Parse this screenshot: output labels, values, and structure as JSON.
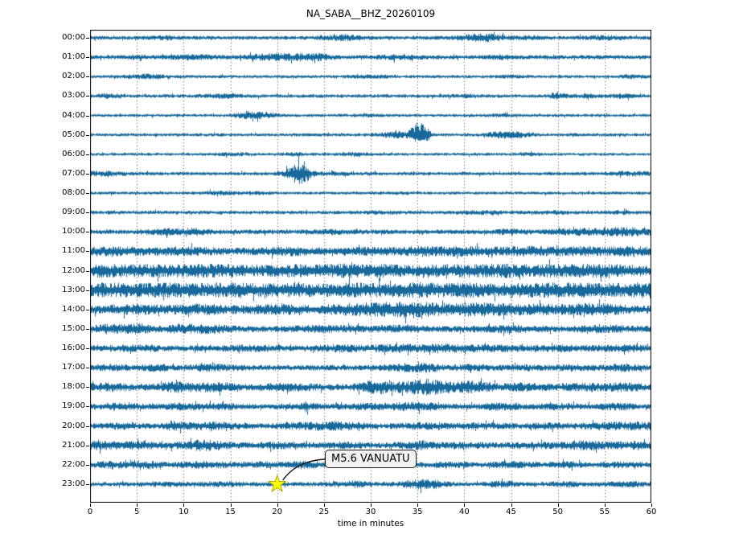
{
  "title": "NA_SABA__BHZ_20260109",
  "xlabel": "time in minutes",
  "annotation": {
    "label": "M5.6 VANUATU",
    "minute": 20,
    "row_label": "23:00"
  },
  "colors": {
    "trace": "#17699c",
    "grid": "#4d4d4d",
    "spine": "#000000",
    "star_fill": "#ffff00",
    "star_edge": "#a8a800",
    "arrow": "#111111",
    "annotation_bg": "#f2f2f2",
    "annotation_border": "#1a1a1a"
  },
  "chart_data": {
    "type": "line",
    "subtype": "helicorder-dayplot",
    "title": "NA_SABA__BHZ_20260109",
    "xlabel": "time in minutes",
    "x_range": [
      0,
      60
    ],
    "x_ticks": [
      0,
      5,
      10,
      15,
      20,
      25,
      30,
      35,
      40,
      45,
      50,
      55,
      60
    ],
    "grid": "vertical dotted lines every 5 minutes",
    "legend": "none",
    "annotation": {
      "label": "M5.6 VANUATU",
      "minute": 20,
      "row_label": "23:00",
      "marker": "yellow-star"
    },
    "rows": [
      {
        "label": "00:00",
        "base": 2.4,
        "bursts": [
          [
            8,
            1,
            1.2
          ],
          [
            27,
            1.5,
            2.2
          ],
          [
            42,
            1.8,
            3.2
          ],
          [
            47,
            1,
            1.2
          ],
          [
            55,
            1.5,
            1.5
          ]
        ]
      },
      {
        "label": "01:00",
        "base": 2.6,
        "bursts": [
          [
            5,
            1,
            1.0
          ],
          [
            11,
            1.5,
            1.8
          ],
          [
            20,
            2.5,
            2.4
          ],
          [
            24,
            1.5,
            2.0
          ],
          [
            33,
            1.5,
            1.6
          ],
          [
            44,
            1,
            1.0
          ]
        ]
      },
      {
        "label": "02:00",
        "base": 2.0,
        "bursts": [
          [
            6,
            1.5,
            1.8
          ],
          [
            30,
            1.5,
            1.0
          ],
          [
            45,
            1,
            0.8
          ],
          [
            58,
            1,
            1.0
          ]
        ]
      },
      {
        "label": "03:00",
        "base": 2.2,
        "bursts": [
          [
            2,
            1,
            1.4
          ],
          [
            14,
            1.5,
            1.4
          ],
          [
            40,
            1,
            1.0
          ],
          [
            50,
            0.7,
            2.2
          ],
          [
            53,
            1,
            1.2
          ],
          [
            57,
            1,
            1.4
          ]
        ]
      },
      {
        "label": "04:00",
        "base": 1.9,
        "bursts": [
          [
            17,
            1.2,
            2.8
          ],
          [
            19,
            0.8,
            2.0
          ],
          [
            30,
            1,
            0.8
          ],
          [
            44,
            1,
            0.8
          ]
        ]
      },
      {
        "label": "05:00",
        "base": 2.0,
        "bursts": [
          [
            33,
            1.5,
            2.6
          ],
          [
            35,
            0.5,
            11.5
          ],
          [
            35.8,
            0.4,
            7.0
          ],
          [
            44,
            1.2,
            2.4
          ],
          [
            46,
            1,
            1.8
          ]
        ]
      },
      {
        "label": "06:00",
        "base": 1.9,
        "bursts": [
          [
            15,
            1.5,
            0.9
          ],
          [
            22,
            1,
            0.9
          ],
          [
            28,
            1,
            1.1
          ],
          [
            47,
            1,
            0.7
          ]
        ]
      },
      {
        "label": "07:00",
        "base": 2.2,
        "bursts": [
          [
            1,
            2,
            1.6
          ],
          [
            22,
            0.8,
            9.0
          ],
          [
            23,
            0.6,
            4.5
          ],
          [
            26,
            1.5,
            1.0
          ],
          [
            58,
            1.5,
            1.4
          ]
        ]
      },
      {
        "label": "08:00",
        "base": 1.9,
        "bursts": [
          [
            14,
            1.2,
            1.4
          ],
          [
            18,
            1,
            1.0
          ],
          [
            33,
            1,
            0.6
          ]
        ]
      },
      {
        "label": "09:00",
        "base": 2.3,
        "bursts": [
          [
            31,
            1,
            0.9
          ],
          [
            42,
            1.5,
            0.9
          ],
          [
            50,
            1,
            0.7
          ],
          [
            57,
            1,
            0.9
          ]
        ]
      },
      {
        "label": "10:00",
        "base": 2.9,
        "bursts": [
          [
            8,
            1.5,
            1.8
          ],
          [
            11,
            1.2,
            2.2
          ],
          [
            26,
            1.5,
            1.0
          ],
          [
            45,
            1.2,
            1.6
          ],
          [
            52,
            2,
            1.8
          ],
          [
            57,
            2.5,
            3.2
          ]
        ]
      },
      {
        "label": "11:00",
        "base": 4.6,
        "bursts": [
          [
            3,
            2,
            1.8
          ],
          [
            10,
            2,
            1.8
          ],
          [
            21,
            2,
            1.8
          ],
          [
            30,
            1.5,
            1.6
          ],
          [
            35,
            1.5,
            2.8
          ],
          [
            40,
            2,
            2.2
          ],
          [
            47,
            2.5,
            2.2
          ],
          [
            53,
            2,
            1.8
          ],
          [
            58,
            1.5,
            2.2
          ]
        ]
      },
      {
        "label": "12:00",
        "base": 6.2,
        "bursts": [
          [
            1,
            2,
            2.6
          ],
          [
            7,
            2.5,
            2.2
          ],
          [
            13,
            2.5,
            2.6
          ],
          [
            22,
            2.5,
            2.2
          ],
          [
            27,
            1.5,
            2.2
          ],
          [
            31,
            2,
            2.6
          ],
          [
            38,
            2,
            2.2
          ],
          [
            44,
            2.5,
            2.6
          ],
          [
            50,
            2,
            2.2
          ],
          [
            55,
            2.5,
            2.6
          ]
        ]
      },
      {
        "label": "13:00",
        "base": 6.8,
        "bursts": [
          [
            2,
            2,
            2.6
          ],
          [
            8,
            2.5,
            2.6
          ],
          [
            15,
            2.5,
            3.0
          ],
          [
            21,
            2,
            2.2
          ],
          [
            28,
            2.5,
            2.6
          ],
          [
            35,
            2.5,
            3.0
          ],
          [
            41,
            2,
            2.6
          ],
          [
            48,
            2.5,
            3.0
          ],
          [
            54,
            2.5,
            2.6
          ],
          [
            59,
            1.5,
            2.6
          ]
        ]
      },
      {
        "label": "14:00",
        "base": 5.2,
        "bursts": [
          [
            5,
            2,
            1.8
          ],
          [
            12,
            2,
            2.2
          ],
          [
            20,
            2,
            1.8
          ],
          [
            30,
            3.5,
            3.6
          ],
          [
            35,
            2.5,
            3.6
          ],
          [
            42,
            2.5,
            3.6
          ],
          [
            48,
            2,
            2.2
          ],
          [
            54,
            2,
            3.2
          ]
        ]
      },
      {
        "label": "15:00",
        "base": 4.0,
        "bursts": [
          [
            2,
            1.2,
            2.6
          ],
          [
            5,
            0.9,
            3.2
          ],
          [
            10,
            1.3,
            2.8
          ],
          [
            13,
            1.2,
            2.2
          ],
          [
            25,
            2,
            1.4
          ],
          [
            33,
            2,
            1.4
          ],
          [
            44,
            2,
            1.4
          ],
          [
            55,
            2,
            1.4
          ]
        ]
      },
      {
        "label": "16:00",
        "base": 3.6,
        "bursts": [
          [
            5,
            2,
            1.4
          ],
          [
            17,
            2,
            1.4
          ],
          [
            27,
            2,
            1.8
          ],
          [
            33,
            2,
            1.8
          ],
          [
            38,
            2.5,
            2.2
          ],
          [
            44,
            2,
            1.4
          ],
          [
            50,
            1.5,
            1.4
          ],
          [
            57,
            2,
            1.8
          ]
        ]
      },
      {
        "label": "17:00",
        "base": 3.4,
        "bursts": [
          [
            2,
            1.5,
            1.8
          ],
          [
            7,
            1,
            2.2
          ],
          [
            13,
            2,
            1.8
          ],
          [
            34,
            1.8,
            2.2
          ],
          [
            36,
            1,
            1.8
          ],
          [
            41,
            1.5,
            1.4
          ],
          [
            46,
            1,
            1.4
          ],
          [
            52,
            1.5,
            1.4
          ],
          [
            57,
            1.5,
            1.8
          ]
        ]
      },
      {
        "label": "18:00",
        "base": 4.0,
        "bursts": [
          [
            2,
            1.5,
            2.6
          ],
          [
            9,
            1.3,
            3.2
          ],
          [
            13,
            1.8,
            2.6
          ],
          [
            21,
            2,
            1.8
          ],
          [
            30,
            0.9,
            4.6
          ],
          [
            31.5,
            0.9,
            2.8
          ],
          [
            35,
            1.8,
            4.6
          ],
          [
            37,
            1.3,
            3.6
          ],
          [
            41,
            1.3,
            4.6
          ],
          [
            46,
            1.4,
            2.2
          ],
          [
            52,
            2,
            1.8
          ],
          [
            57,
            1.5,
            2.2
          ]
        ]
      },
      {
        "label": "19:00",
        "base": 3.4,
        "bursts": [
          [
            3,
            1.5,
            1.8
          ],
          [
            10,
            1.4,
            2.2
          ],
          [
            14,
            1,
            1.8
          ],
          [
            23,
            0.7,
            2.8
          ],
          [
            30,
            2,
            1.8
          ],
          [
            35,
            2,
            2.6
          ],
          [
            44,
            1.5,
            2.2
          ],
          [
            50,
            1.5,
            1.4
          ],
          [
            56,
            1.5,
            1.8
          ]
        ]
      },
      {
        "label": "20:00",
        "base": 3.4,
        "bursts": [
          [
            3,
            1.5,
            1.4
          ],
          [
            9,
            0.9,
            3.6
          ],
          [
            13,
            2,
            2.2
          ],
          [
            23,
            2,
            1.8
          ],
          [
            27,
            1.7,
            2.4
          ],
          [
            36,
            2,
            1.8
          ],
          [
            42,
            1.5,
            1.4
          ],
          [
            49,
            1.5,
            1.4
          ],
          [
            55,
            2,
            1.8
          ],
          [
            59,
            1.5,
            2.2
          ]
        ]
      },
      {
        "label": "21:00",
        "base": 3.6,
        "bursts": [
          [
            1,
            1.5,
            2.6
          ],
          [
            5,
            1.5,
            2.2
          ],
          [
            12,
            1.8,
            3.6
          ],
          [
            20,
            2,
            1.4
          ],
          [
            27,
            1.5,
            1.4
          ],
          [
            35,
            1.3,
            3.2
          ],
          [
            40,
            1.5,
            1.4
          ],
          [
            47,
            1.5,
            1.4
          ],
          [
            53,
            1.8,
            3.2
          ],
          [
            58,
            1.5,
            1.8
          ]
        ]
      },
      {
        "label": "22:00",
        "base": 3.1,
        "bursts": [
          [
            2,
            1.5,
            1.8
          ],
          [
            6,
            1.3,
            2.2
          ],
          [
            12,
            2,
            1.8
          ],
          [
            18,
            1.5,
            1.4
          ],
          [
            23,
            1.4,
            2.2
          ],
          [
            30,
            1.5,
            1.4
          ],
          [
            38,
            1.5,
            1.4
          ],
          [
            45,
            1.5,
            1.8
          ],
          [
            51,
            1.5,
            1.4
          ],
          [
            57,
            1.5,
            1.4
          ]
        ]
      },
      {
        "label": "23:00",
        "base": 2.7,
        "bursts": [
          [
            8,
            1.5,
            1.4
          ],
          [
            14,
            1.5,
            1.4
          ],
          [
            28,
            1.4,
            2.2
          ],
          [
            35,
            1.4,
            2.8
          ],
          [
            36.5,
            1,
            2.2
          ],
          [
            44,
            1,
            2.2
          ],
          [
            51,
            1.5,
            1.4
          ],
          [
            57,
            1.5,
            1.8
          ]
        ]
      }
    ]
  }
}
